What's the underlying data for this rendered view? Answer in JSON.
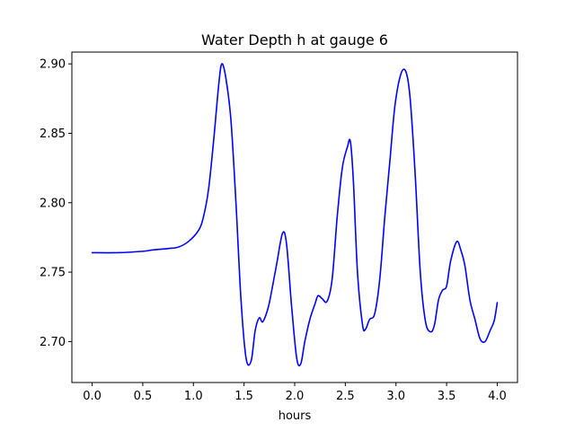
{
  "chart_data": {
    "type": "line",
    "title": "Water Depth h at gauge 6",
    "xlabel": "hours",
    "ylabel": "",
    "xlim": [
      -0.2,
      4.2
    ],
    "ylim": [
      2.6705,
      2.9085
    ],
    "x_ticks": [
      0.0,
      0.5,
      1.0,
      1.5,
      2.0,
      2.5,
      3.0,
      3.5,
      4.0
    ],
    "x_tick_labels": [
      "0.0",
      "0.5",
      "1.0",
      "1.5",
      "2.0",
      "2.5",
      "3.0",
      "3.5",
      "4.0"
    ],
    "y_ticks": [
      2.7,
      2.75,
      2.8,
      2.85,
      2.9
    ],
    "y_tick_labels": [
      "2.70",
      "2.75",
      "2.80",
      "2.85",
      "2.90"
    ],
    "grid": false,
    "series": [
      {
        "color": "#0000ff",
        "x": [
          0.0,
          0.25,
          0.5,
          0.6,
          0.75,
          0.85,
          0.95,
          1.05,
          1.1,
          1.15,
          1.2,
          1.25,
          1.28,
          1.32,
          1.37,
          1.42,
          1.47,
          1.52,
          1.57,
          1.61,
          1.65,
          1.68,
          1.71,
          1.75,
          1.82,
          1.88,
          1.92,
          1.97,
          2.02,
          2.06,
          2.1,
          2.15,
          2.2,
          2.23,
          2.27,
          2.32,
          2.37,
          2.42,
          2.47,
          2.52,
          2.55,
          2.58,
          2.62,
          2.67,
          2.7,
          2.74,
          2.79,
          2.84,
          2.89,
          2.94,
          2.99,
          3.05,
          3.1,
          3.14,
          3.19,
          3.24,
          3.29,
          3.34,
          3.38,
          3.42,
          3.46,
          3.5,
          3.54,
          3.6,
          3.64,
          3.68,
          3.73,
          3.78,
          3.83,
          3.88,
          3.93,
          3.97,
          4.0
        ],
        "y": [
          2.764,
          2.764,
          2.765,
          2.766,
          2.767,
          2.768,
          2.772,
          2.78,
          2.79,
          2.81,
          2.845,
          2.885,
          2.9,
          2.89,
          2.86,
          2.8,
          2.73,
          2.688,
          2.686,
          2.708,
          2.717,
          2.714,
          2.718,
          2.728,
          2.755,
          2.778,
          2.77,
          2.725,
          2.688,
          2.684,
          2.7,
          2.716,
          2.727,
          2.733,
          2.731,
          2.729,
          2.745,
          2.79,
          2.825,
          2.84,
          2.844,
          2.815,
          2.75,
          2.712,
          2.709,
          2.716,
          2.72,
          2.745,
          2.79,
          2.83,
          2.87,
          2.893,
          2.894,
          2.875,
          2.82,
          2.75,
          2.715,
          2.707,
          2.712,
          2.73,
          2.737,
          2.74,
          2.758,
          2.772,
          2.766,
          2.755,
          2.73,
          2.716,
          2.702,
          2.7,
          2.708,
          2.715,
          2.728
        ]
      }
    ]
  }
}
